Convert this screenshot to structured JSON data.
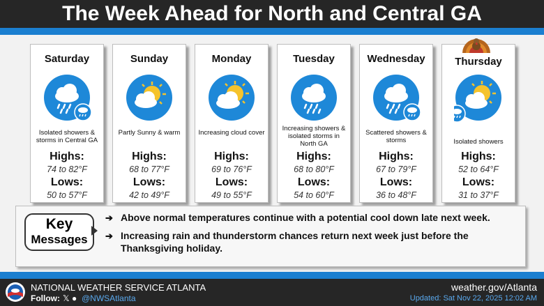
{
  "title": "The Week Ahead for North and Central GA",
  "days": [
    {
      "name": "Saturday",
      "icon": "rain-storm-icon",
      "desc": "Isolated showers & storms in Central GA",
      "highs_label": "Highs:",
      "highs": "74 to 82°F",
      "lows_label": "Lows:",
      "lows": "50 to 57°F"
    },
    {
      "name": "Sunday",
      "icon": "partly-sunny-icon",
      "desc": "Partly Sunny & warm",
      "highs_label": "Highs:",
      "highs": "68 to 77°F",
      "lows_label": "Lows:",
      "lows": "42 to 49°F"
    },
    {
      "name": "Monday",
      "icon": "partly-sunny-icon",
      "desc": "Increasing cloud cover",
      "highs_label": "Highs:",
      "highs": "69 to 76°F",
      "lows_label": "Lows:",
      "lows": "49 to 55°F"
    },
    {
      "name": "Tuesday",
      "icon": "rain-icon",
      "desc": "Increasing showers & isolated storms in North GA",
      "highs_label": "Highs:",
      "highs": "68 to 80°F",
      "lows_label": "Lows:",
      "lows": "54 to 60°F"
    },
    {
      "name": "Wednesday",
      "icon": "rain-storm-icon",
      "desc": "Scattered showers & storms",
      "highs_label": "Highs:",
      "highs": "67 to 79°F",
      "lows_label": "Lows:",
      "lows": "36 to 48°F"
    },
    {
      "name": "Thursday",
      "icon": "sun-cloud-rain-icon",
      "desc": "Isolated showers",
      "highs_label": "Highs:",
      "highs": "52 to 64°F",
      "lows_label": "Lows:",
      "lows": "31 to 37°F"
    }
  ],
  "key": {
    "line1": "Key",
    "line2": "Messages",
    "messages": [
      "Above normal temperatures continue with a potential cool down late next week.",
      "Increasing rain and thunderstorm chances return next week just before the",
      "Thanksgiving holiday."
    ],
    "arrow_glyph": "➔"
  },
  "footer": {
    "office": "NATIONAL WEATHER SERVICE ATLANTA",
    "follow_label": "Follow:",
    "social_glyphs": "𝕏 ●",
    "handle": "@NWSAtlanta",
    "website": "weather.gov/Atlanta",
    "updated": "Updated: Sat Nov 22, 2025 12:02 AM"
  },
  "colors": {
    "accent_blue": "#1b7fd0",
    "icon_blue": "#1e88d8",
    "sun_yellow": "#f5c32c",
    "header_bg": "#262626"
  }
}
